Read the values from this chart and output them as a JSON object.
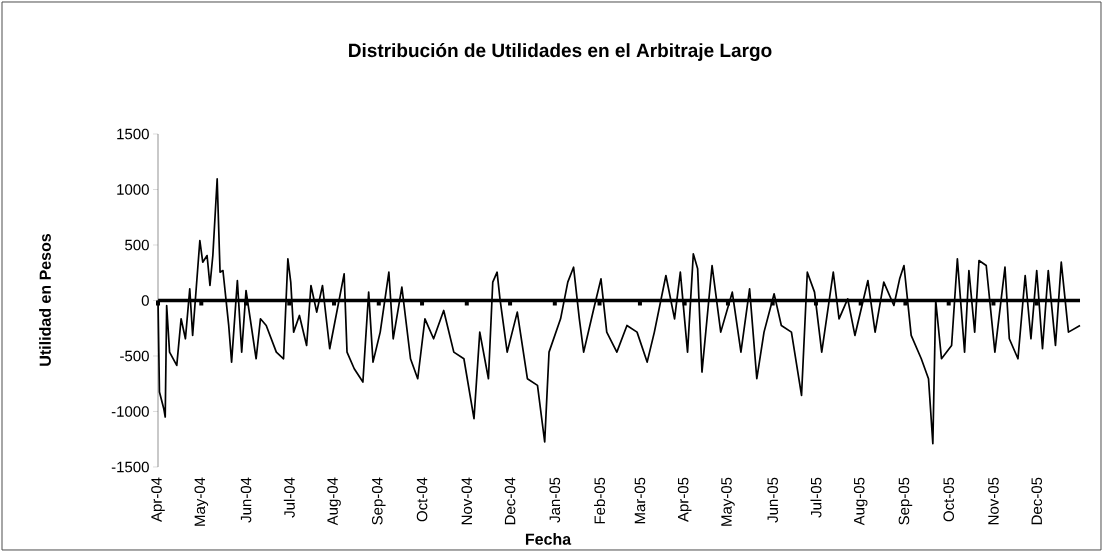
{
  "chart_data": {
    "type": "line",
    "title": "Distribución de Utilidades en el Arbitraje Largo",
    "xlabel": "Fecha",
    "ylabel": "Utilidad en Pesos",
    "x": [
      "2004-04-01",
      "2004-04-02",
      "2004-04-05",
      "2004-04-06",
      "2004-04-07",
      "2004-04-09",
      "2004-04-14",
      "2004-04-17",
      "2004-04-20",
      "2004-04-23",
      "2004-04-25",
      "2004-04-30",
      "2004-05-02",
      "2004-05-05",
      "2004-05-07",
      "2004-05-09",
      "2004-05-12",
      "2004-05-14",
      "2004-05-16",
      "2004-05-20",
      "2004-05-22",
      "2004-05-26",
      "2004-05-29",
      "2004-06-01",
      "2004-06-08",
      "2004-06-11",
      "2004-06-15",
      "2004-06-22",
      "2004-06-27",
      "2004-06-30",
      "2004-07-02",
      "2004-07-04",
      "2004-07-08",
      "2004-07-13",
      "2004-07-16",
      "2004-07-20",
      "2004-07-24",
      "2004-07-29",
      "2004-08-08",
      "2004-08-10",
      "2004-08-15",
      "2004-08-21",
      "2004-08-25",
      "2004-08-28",
      "2004-09-02",
      "2004-09-08",
      "2004-09-11",
      "2004-09-17",
      "2004-09-23",
      "2004-09-28",
      "2004-10-03",
      "2004-10-09",
      "2004-10-16",
      "2004-10-23",
      "2004-10-30",
      "2004-11-06",
      "2004-11-10",
      "2004-11-16",
      "2004-11-19",
      "2004-11-22",
      "2004-11-24",
      "2004-11-29",
      "2004-12-06",
      "2004-12-13",
      "2004-12-20",
      "2004-12-25",
      "2004-12-28",
      "2005-01-05",
      "2005-01-10",
      "2005-01-14",
      "2005-01-18",
      "2005-01-21",
      "2005-01-28",
      "2005-02-02",
      "2005-02-06",
      "2005-02-13",
      "2005-02-20",
      "2005-02-27",
      "2005-03-06",
      "2005-03-11",
      "2005-03-19",
      "2005-03-25",
      "2005-03-29",
      "2005-04-03",
      "2005-04-07",
      "2005-04-10",
      "2005-04-13",
      "2005-04-20",
      "2005-04-26",
      "2005-05-04",
      "2005-05-10",
      "2005-05-16",
      "2005-05-21",
      "2005-05-26",
      "2005-06-02",
      "2005-06-07",
      "2005-06-14",
      "2005-06-21",
      "2005-06-25",
      "2005-06-30",
      "2005-07-05",
      "2005-07-13",
      "2005-07-17",
      "2005-07-23",
      "2005-07-28",
      "2005-08-06",
      "2005-08-11",
      "2005-08-17",
      "2005-08-24",
      "2005-08-28",
      "2005-08-31",
      "2005-09-05",
      "2005-09-12",
      "2005-09-17",
      "2005-09-20",
      "2005-09-22",
      "2005-09-26",
      "2005-10-03",
      "2005-10-07",
      "2005-10-12",
      "2005-10-15",
      "2005-10-19",
      "2005-10-22",
      "2005-10-27",
      "2005-11-02",
      "2005-11-09",
      "2005-11-12",
      "2005-11-18",
      "2005-11-23",
      "2005-11-27",
      "2005-12-01",
      "2005-12-05",
      "2005-12-09",
      "2005-12-14",
      "2005-12-18",
      "2005-12-23",
      "2005-12-31"
    ],
    "series": [
      {
        "color": "#000000",
        "values": [
          0,
          -825,
          -975,
          -1050,
          -45,
          -465,
          -585,
          -165,
          -345,
          105,
          -315,
          540,
          345,
          405,
          135,
          405,
          1095,
          255,
          270,
          -225,
          -555,
          180,
          -465,
          90,
          -525,
          -165,
          -225,
          -465,
          -525,
          375,
          165,
          -285,
          -135,
          -405,
          135,
          -105,
          135,
          -435,
          240,
          -465,
          -615,
          -735,
          75,
          -555,
          -285,
          255,
          -345,
          120,
          -525,
          -705,
          -165,
          -345,
          -90,
          -465,
          -525,
          -1065,
          -285,
          -705,
          165,
          255,
          15,
          -465,
          -105,
          -705,
          -765,
          -1275,
          -465,
          -165,
          165,
          300,
          -165,
          -465,
          -75,
          195,
          -285,
          -465,
          -225,
          -285,
          -555,
          -285,
          225,
          -165,
          255,
          -465,
          420,
          285,
          -645,
          315,
          -285,
          75,
          -465,
          105,
          -705,
          -285,
          60,
          -225,
          -285,
          -855,
          255,
          75,
          -465,
          255,
          -165,
          15,
          -315,
          180,
          -285,
          165,
          -45,
          195,
          315,
          -315,
          -525,
          -705,
          -1290,
          0,
          -525,
          -405,
          375,
          -465,
          270,
          -285,
          360,
          315,
          -465,
          300,
          -345,
          -525,
          225,
          -345,
          270,
          -435,
          270,
          -405,
          345,
          -285,
          -225
        ]
      }
    ],
    "xlim": [
      "2004-04-01",
      "2005-12-31"
    ],
    "xticks": [
      {
        "value": "2004-04-01",
        "label": "Apr-04"
      },
      {
        "value": "2004-05-01",
        "label": "May-04"
      },
      {
        "value": "2004-06-01",
        "label": "Jun-04"
      },
      {
        "value": "2004-07-01",
        "label": "Jul-04"
      },
      {
        "value": "2004-08-01",
        "label": "Aug-04"
      },
      {
        "value": "2004-09-01",
        "label": "Sep-04"
      },
      {
        "value": "2004-10-01",
        "label": "Oct-04"
      },
      {
        "value": "2004-11-01",
        "label": "Nov-04"
      },
      {
        "value": "2004-12-01",
        "label": "Dec-04"
      },
      {
        "value": "2005-01-01",
        "label": "Jan-05"
      },
      {
        "value": "2005-02-01",
        "label": "Feb-05"
      },
      {
        "value": "2005-03-01",
        "label": "Mar-05"
      },
      {
        "value": "2005-04-01",
        "label": "Apr-05"
      },
      {
        "value": "2005-05-01",
        "label": "May-05"
      },
      {
        "value": "2005-06-01",
        "label": "Jun-05"
      },
      {
        "value": "2005-07-01",
        "label": "Jul-05"
      },
      {
        "value": "2005-08-01",
        "label": "Aug-05"
      },
      {
        "value": "2005-09-01",
        "label": "Sep-05"
      },
      {
        "value": "2005-10-01",
        "label": "Oct-05"
      },
      {
        "value": "2005-11-01",
        "label": "Nov-05"
      },
      {
        "value": "2005-12-01",
        "label": "Dec-05"
      }
    ],
    "ylim": [
      -1500,
      1500
    ],
    "yticks": [
      -1500,
      -1000,
      -500,
      0,
      500,
      1000,
      1500
    ],
    "line_style": "solid"
  }
}
